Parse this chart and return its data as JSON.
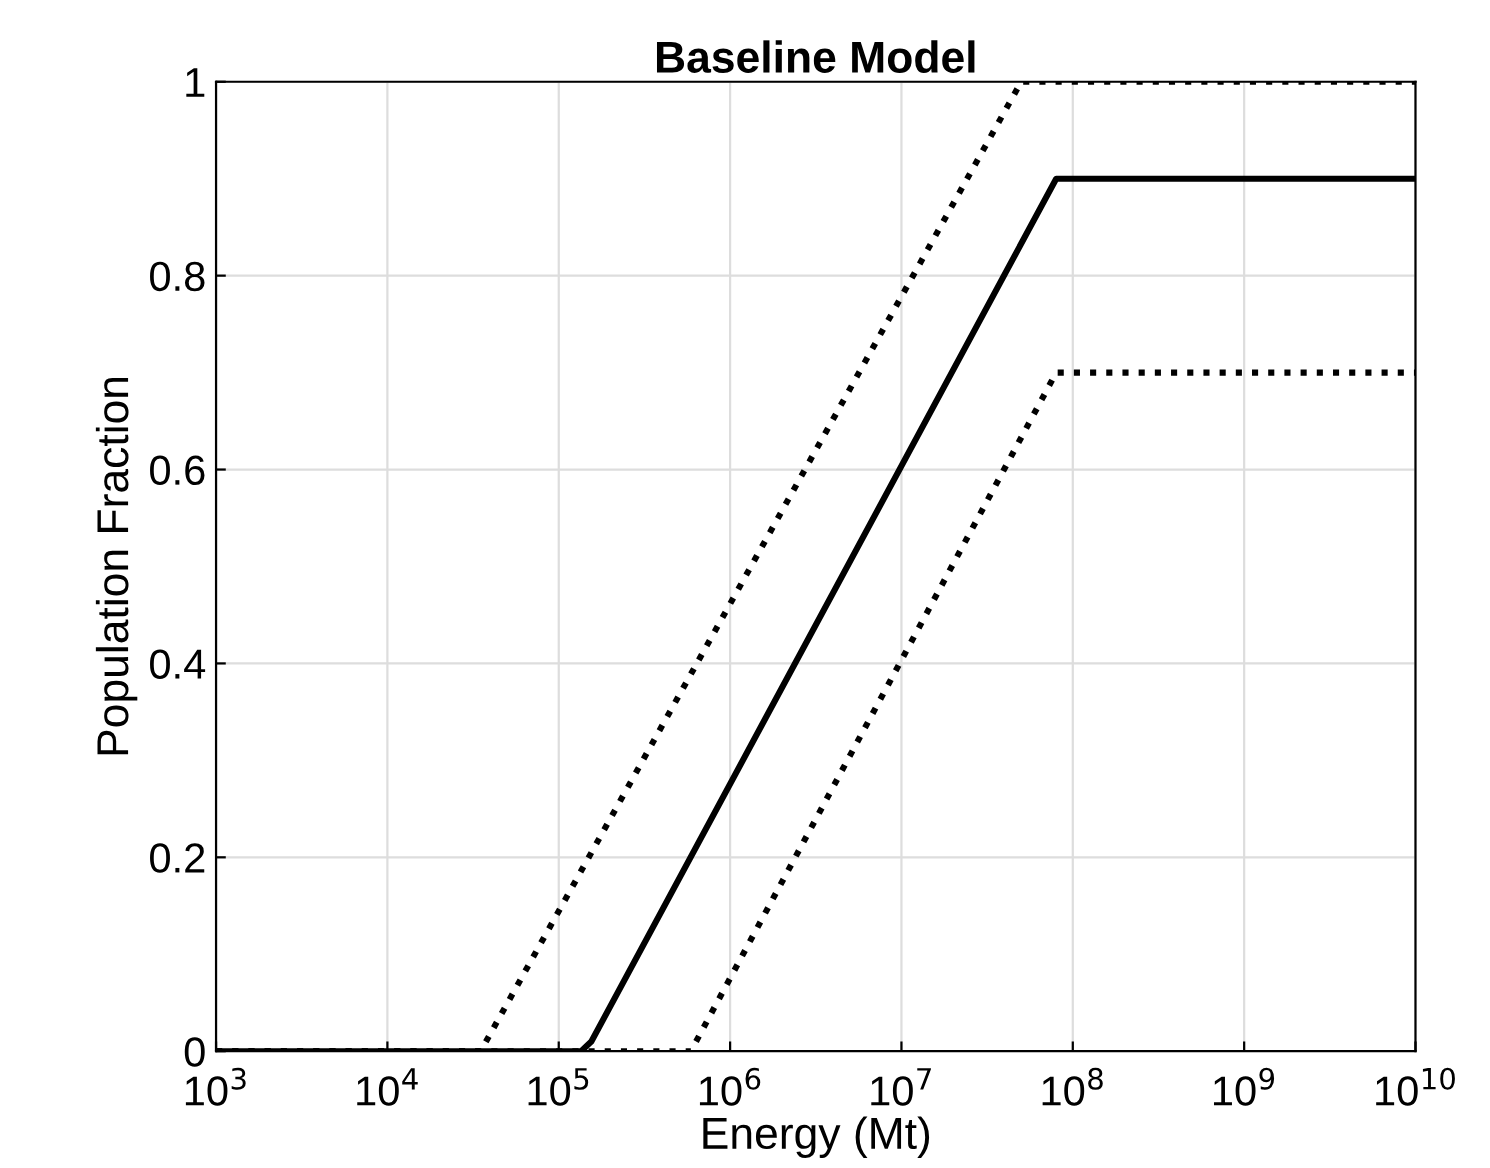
{
  "chart_data": {
    "type": "line",
    "title": "Baseline Model",
    "xlabel": "Energy (Mt)",
    "ylabel": "Population Fraction",
    "log": "x",
    "grid": true,
    "xlim": [
      1000,
      10000000000
    ],
    "ylim": [
      0,
      1
    ],
    "xticks": [
      {
        "value": 1000,
        "label": "10$^{3}$"
      },
      {
        "value": 10000,
        "label": "10$^{4}$"
      },
      {
        "value": 100000,
        "label": "10$^{5}$"
      },
      {
        "value": 1000000,
        "label": "10$^{6}$"
      },
      {
        "value": 10000000,
        "label": "10$^{7}$"
      },
      {
        "value": 100000000,
        "label": "10$^{8}$"
      },
      {
        "value": 1000000000,
        "label": "10$^{9}$"
      },
      {
        "value": 10000000000,
        "label": "10$^{10}$"
      }
    ],
    "yticks": [
      0,
      0.2,
      0.4,
      0.6,
      0.8,
      1
    ],
    "series": [
      {
        "color": "#000000",
        "line_style": "dotted",
        "x": [
          1000,
          35000,
          50000000,
          10000000000
        ],
        "values": [
          0,
          0,
          1,
          1
        ]
      },
      {
        "color": "#000000",
        "line_style": "solid",
        "x": [
          1000,
          135000,
          155000,
          80000000,
          10000000000
        ],
        "values": [
          0,
          0,
          0.01,
          0.9,
          0.9
        ]
      },
      {
        "color": "#000000",
        "line_style": "dotted",
        "x": [
          1000,
          590000,
          80000000,
          10000000000
        ],
        "values": [
          0,
          0,
          0.7,
          0.7
        ]
      }
    ]
  }
}
